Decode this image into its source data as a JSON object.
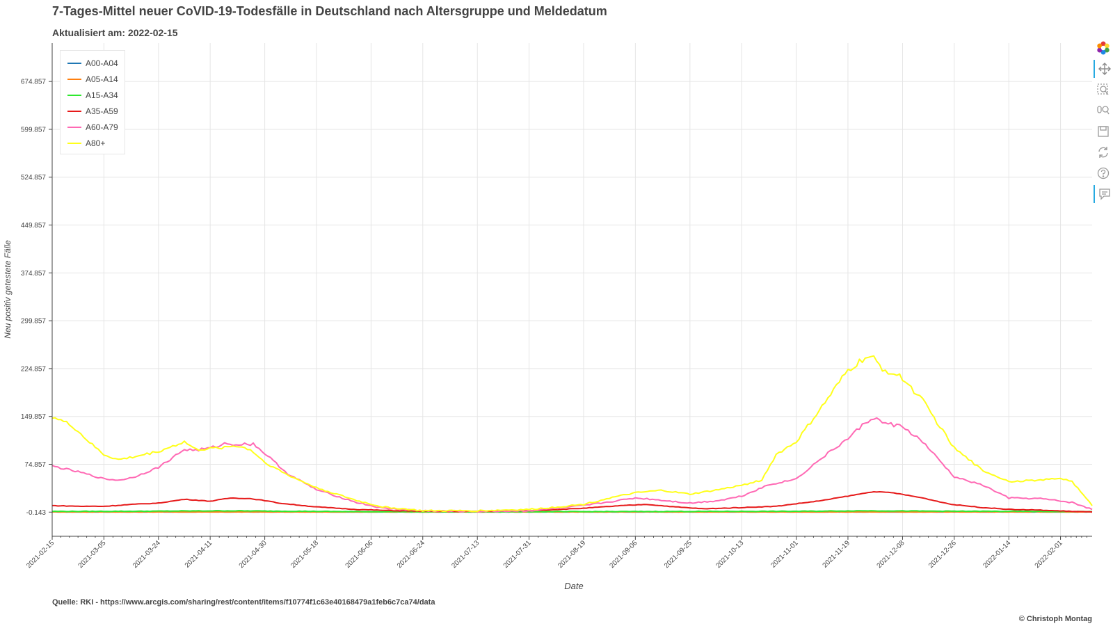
{
  "title": "7-Tages-Mittel neuer CoVID-19-Todesfälle in Deutschland nach Altersgruppe und Meldedatum",
  "subtitle": "Aktualisiert am: 2022-02-15",
  "source": "Quelle: RKI - https://www.arcgis.com/sharing/rest/content/items/f10774f1c63e40168479a1feb6c7ca74/data",
  "copyright": "© Christoph Montag",
  "toolbar": {
    "tools": [
      "bokeh-logo-icon",
      "pan-icon",
      "box-zoom-icon",
      "wheel-zoom-icon",
      "save-icon",
      "reset-icon",
      "help-icon",
      "hover-icon"
    ]
  },
  "chart_data": {
    "type": "line",
    "xlabel": "Date",
    "ylabel": "Neu positiv getestete Fälle",
    "x_start": "2021-02-15",
    "x_end": "2022-02-12",
    "x_ticks": [
      "2021-02-15",
      "2021-03-05",
      "2021-03-24",
      "2021-04-11",
      "2021-04-30",
      "2021-05-18",
      "2021-06-06",
      "2021-06-24",
      "2021-07-13",
      "2021-07-31",
      "2021-08-19",
      "2021-09-06",
      "2021-09-25",
      "2021-10-13",
      "2021-11-01",
      "2021-11-19",
      "2021-12-08",
      "2021-12-26",
      "2022-01-14",
      "2022-02-01"
    ],
    "y_ticks": [
      "-0.143",
      "74.857",
      "149.857",
      "224.857",
      "299.857",
      "374.857",
      "449.857",
      "524.857",
      "599.857",
      "674.857"
    ],
    "ylim": [
      -38,
      735
    ],
    "grid": true,
    "legend_position": "top-left",
    "series": [
      {
        "name": "A00-A04",
        "color": "#1f77b4",
        "points": [
          [
            "2021-02-15",
            0.1
          ],
          [
            "2021-06-01",
            0.0
          ],
          [
            "2021-11-01",
            0.1
          ],
          [
            "2022-02-12",
            0.1
          ]
        ]
      },
      {
        "name": "A05-A14",
        "color": "#ff7f0e",
        "points": [
          [
            "2021-02-15",
            0.1
          ],
          [
            "2021-06-01",
            0.0
          ],
          [
            "2021-11-01",
            0.1
          ],
          [
            "2022-02-12",
            0.1
          ]
        ]
      },
      {
        "name": "A15-A34",
        "color": "#2ee82e",
        "points": [
          [
            "2021-02-15",
            1.0
          ],
          [
            "2021-03-15",
            1.2
          ],
          [
            "2021-04-15",
            2.0
          ],
          [
            "2021-04-30",
            1.6
          ],
          [
            "2021-06-01",
            0.6
          ],
          [
            "2021-07-15",
            0.3
          ],
          [
            "2021-09-06",
            0.8
          ],
          [
            "2021-11-01",
            1.2
          ],
          [
            "2021-11-25",
            2.0
          ],
          [
            "2021-12-20",
            1.4
          ],
          [
            "2022-01-20",
            1.0
          ],
          [
            "2022-02-12",
            0.6
          ]
        ]
      },
      {
        "name": "A35-A59",
        "color": "#e61a1a",
        "points": [
          [
            "2021-02-15",
            10
          ],
          [
            "2021-02-25",
            9
          ],
          [
            "2021-03-05",
            9
          ],
          [
            "2021-03-15",
            12
          ],
          [
            "2021-03-24",
            14
          ],
          [
            "2021-04-02",
            20
          ],
          [
            "2021-04-11",
            17
          ],
          [
            "2021-04-18",
            22
          ],
          [
            "2021-04-25",
            21
          ],
          [
            "2021-04-30",
            18
          ],
          [
            "2021-05-05",
            14
          ],
          [
            "2021-05-18",
            8
          ],
          [
            "2021-06-01",
            4
          ],
          [
            "2021-06-15",
            2
          ],
          [
            "2021-07-01",
            1
          ],
          [
            "2021-07-15",
            1
          ],
          [
            "2021-07-31",
            2
          ],
          [
            "2021-08-10",
            4
          ],
          [
            "2021-08-19",
            6
          ],
          [
            "2021-09-01",
            10
          ],
          [
            "2021-09-10",
            12
          ],
          [
            "2021-09-20",
            8
          ],
          [
            "2021-09-30",
            5
          ],
          [
            "2021-10-13",
            7
          ],
          [
            "2021-10-25",
            9
          ],
          [
            "2021-11-01",
            13
          ],
          [
            "2021-11-10",
            18
          ],
          [
            "2021-11-19",
            25
          ],
          [
            "2021-11-28",
            32
          ],
          [
            "2021-12-05",
            30
          ],
          [
            "2021-12-15",
            22
          ],
          [
            "2021-12-25",
            12
          ],
          [
            "2022-01-05",
            7
          ],
          [
            "2022-01-15",
            4
          ],
          [
            "2022-01-25",
            3
          ],
          [
            "2022-02-05",
            1
          ],
          [
            "2022-02-12",
            0
          ]
        ]
      },
      {
        "name": "A60-A79",
        "color": "#ff69b4",
        "points": [
          [
            "2021-02-15",
            72
          ],
          [
            "2021-02-25",
            62
          ],
          [
            "2021-03-05",
            52
          ],
          [
            "2021-03-10",
            50
          ],
          [
            "2021-03-15",
            54
          ],
          [
            "2021-03-24",
            70
          ],
          [
            "2021-04-02",
            98
          ],
          [
            "2021-04-06",
            97
          ],
          [
            "2021-04-11",
            100
          ],
          [
            "2021-04-16",
            107
          ],
          [
            "2021-04-22",
            106
          ],
          [
            "2021-04-26",
            107
          ],
          [
            "2021-04-30",
            92
          ],
          [
            "2021-05-08",
            60
          ],
          [
            "2021-05-18",
            35
          ],
          [
            "2021-06-01",
            15
          ],
          [
            "2021-06-10",
            6
          ],
          [
            "2021-06-24",
            2
          ],
          [
            "2021-07-13",
            1
          ],
          [
            "2021-07-31",
            2
          ],
          [
            "2021-08-10",
            6
          ],
          [
            "2021-08-19",
            10
          ],
          [
            "2021-08-28",
            16
          ],
          [
            "2021-09-06",
            22
          ],
          [
            "2021-09-12",
            20
          ],
          [
            "2021-09-25",
            14
          ],
          [
            "2021-10-05",
            18
          ],
          [
            "2021-10-13",
            25
          ],
          [
            "2021-10-22",
            42
          ],
          [
            "2021-11-01",
            52
          ],
          [
            "2021-11-10",
            85
          ],
          [
            "2021-11-19",
            115
          ],
          [
            "2021-11-25",
            140
          ],
          [
            "2021-11-28",
            148
          ],
          [
            "2021-12-01",
            140
          ],
          [
            "2021-12-08",
            134
          ],
          [
            "2021-12-15",
            110
          ],
          [
            "2021-12-26",
            55
          ],
          [
            "2022-01-05",
            42
          ],
          [
            "2022-01-14",
            22
          ],
          [
            "2022-01-25",
            21
          ],
          [
            "2022-02-05",
            15
          ],
          [
            "2022-02-12",
            4
          ]
        ]
      },
      {
        "name": "A80+",
        "color": "#ffff1a",
        "points": [
          [
            "2021-02-15",
            150
          ],
          [
            "2021-02-22",
            135
          ],
          [
            "2021-03-01",
            105
          ],
          [
            "2021-03-05",
            90
          ],
          [
            "2021-03-10",
            82
          ],
          [
            "2021-03-15",
            86
          ],
          [
            "2021-03-24",
            95
          ],
          [
            "2021-04-02",
            110
          ],
          [
            "2021-04-06",
            98
          ],
          [
            "2021-04-11",
            99
          ],
          [
            "2021-04-20",
            104
          ],
          [
            "2021-04-25",
            98
          ],
          [
            "2021-04-30",
            78
          ],
          [
            "2021-05-08",
            58
          ],
          [
            "2021-05-18",
            38
          ],
          [
            "2021-06-01",
            18
          ],
          [
            "2021-06-10",
            8
          ],
          [
            "2021-06-24",
            2
          ],
          [
            "2021-07-13",
            2
          ],
          [
            "2021-07-31",
            4
          ],
          [
            "2021-08-10",
            8
          ],
          [
            "2021-08-19",
            12
          ],
          [
            "2021-08-28",
            22
          ],
          [
            "2021-09-06",
            30
          ],
          [
            "2021-09-15",
            34
          ],
          [
            "2021-09-25",
            28
          ],
          [
            "2021-10-05",
            35
          ],
          [
            "2021-10-13",
            42
          ],
          [
            "2021-10-20",
            50
          ],
          [
            "2021-10-25",
            90
          ],
          [
            "2021-11-01",
            110
          ],
          [
            "2021-11-10",
            165
          ],
          [
            "2021-11-19",
            222
          ],
          [
            "2021-11-25",
            242
          ],
          [
            "2021-11-28",
            240
          ],
          [
            "2021-12-01",
            225
          ],
          [
            "2021-12-08",
            210
          ],
          [
            "2021-12-15",
            175
          ],
          [
            "2021-12-26",
            100
          ],
          [
            "2022-01-05",
            65
          ],
          [
            "2022-01-14",
            48
          ],
          [
            "2022-01-25",
            50
          ],
          [
            "2022-02-01",
            53
          ],
          [
            "2022-02-05",
            48
          ],
          [
            "2022-02-12",
            10
          ]
        ]
      }
    ]
  }
}
